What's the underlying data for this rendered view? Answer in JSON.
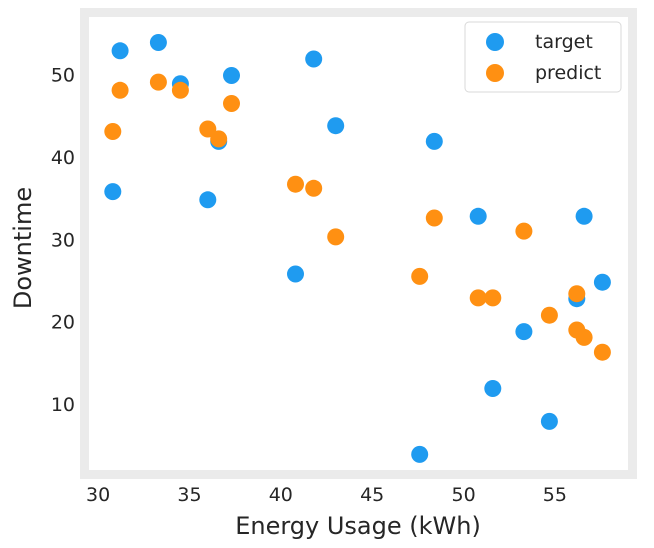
{
  "chart_data": {
    "type": "scatter",
    "title": "",
    "xlabel": "Energy Usage (kWh)",
    "ylabel": "Downtime",
    "xlim": [
      29.5,
      59
    ],
    "ylim": [
      2,
      57
    ],
    "x_ticks": [
      30,
      35,
      40,
      45,
      50,
      55
    ],
    "y_ticks": [
      10,
      20,
      30,
      40,
      50
    ],
    "grid": false,
    "legend_position": "top-right",
    "series": [
      {
        "name": "target",
        "color": "#1f9bf0",
        "points": [
          {
            "x": 30.8,
            "y": 35.8
          },
          {
            "x": 31.2,
            "y": 52.9
          },
          {
            "x": 33.3,
            "y": 53.9
          },
          {
            "x": 34.5,
            "y": 48.9
          },
          {
            "x": 36.0,
            "y": 34.8
          },
          {
            "x": 36.6,
            "y": 41.9
          },
          {
            "x": 37.3,
            "y": 49.9
          },
          {
            "x": 40.8,
            "y": 25.8
          },
          {
            "x": 41.8,
            "y": 51.9
          },
          {
            "x": 43.0,
            "y": 43.8
          },
          {
            "x": 47.6,
            "y": 3.9
          },
          {
            "x": 48.4,
            "y": 41.9
          },
          {
            "x": 50.8,
            "y": 32.8
          },
          {
            "x": 51.6,
            "y": 11.9
          },
          {
            "x": 53.3,
            "y": 18.8
          },
          {
            "x": 54.7,
            "y": 7.9
          },
          {
            "x": 56.2,
            "y": 22.8
          },
          {
            "x": 56.6,
            "y": 32.8
          },
          {
            "x": 57.6,
            "y": 24.8
          }
        ]
      },
      {
        "name": "predict",
        "color": "#ff9012",
        "points": [
          {
            "x": 30.8,
            "y": 43.1
          },
          {
            "x": 31.2,
            "y": 48.1
          },
          {
            "x": 33.3,
            "y": 49.1
          },
          {
            "x": 34.5,
            "y": 48.1
          },
          {
            "x": 36.0,
            "y": 43.4
          },
          {
            "x": 36.6,
            "y": 42.2
          },
          {
            "x": 37.3,
            "y": 46.5
          },
          {
            "x": 40.8,
            "y": 36.7
          },
          {
            "x": 41.8,
            "y": 36.2
          },
          {
            "x": 43.0,
            "y": 30.3
          },
          {
            "x": 47.6,
            "y": 25.5
          },
          {
            "x": 48.4,
            "y": 32.6
          },
          {
            "x": 50.8,
            "y": 22.9
          },
          {
            "x": 51.6,
            "y": 22.9
          },
          {
            "x": 53.3,
            "y": 31.0
          },
          {
            "x": 54.7,
            "y": 20.8
          },
          {
            "x": 56.2,
            "y": 19.0
          },
          {
            "x": 56.6,
            "y": 18.1
          },
          {
            "x": 57.6,
            "y": 16.3
          },
          {
            "x": 56.2,
            "y": 23.4
          }
        ]
      }
    ]
  }
}
